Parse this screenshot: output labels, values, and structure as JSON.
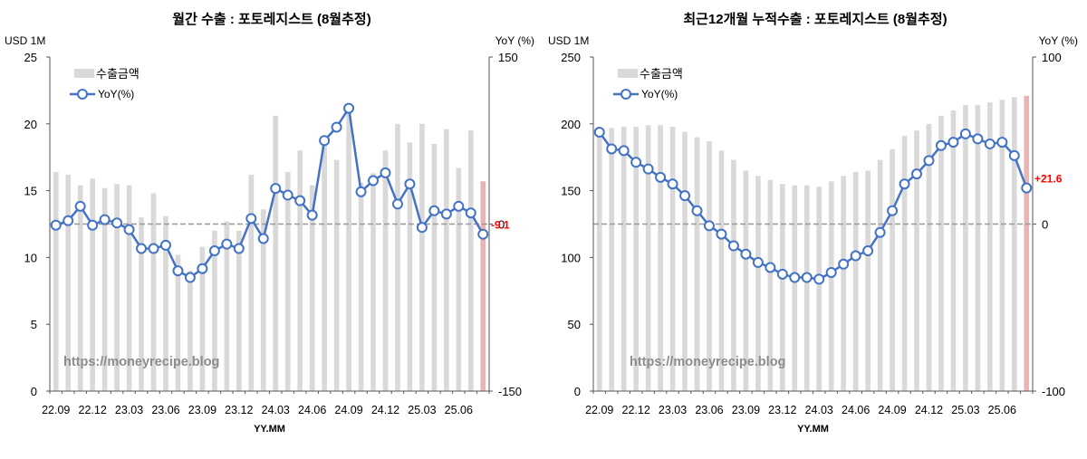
{
  "chart_data": [
    {
      "type": "bar",
      "title": "월간 수출 : 포토레지스트 (8월추정)",
      "y_left_label": "USD 1M",
      "y_right_label": "YoY (%)",
      "xlabel": "YY.MM",
      "ylim_left": [
        0,
        25
      ],
      "ylim_right": [
        -150,
        150
      ],
      "left_ticks": [
        0,
        5,
        10,
        15,
        20,
        25
      ],
      "right_ticks": [
        -150,
        0,
        150
      ],
      "x": [
        "22.09",
        "22.10",
        "22.11",
        "22.12",
        "23.01",
        "23.02",
        "23.03",
        "23.04",
        "23.05",
        "23.06",
        "23.07",
        "23.08",
        "23.09",
        "23.10",
        "23.11",
        "23.12",
        "24.01",
        "24.02",
        "24.03",
        "24.04",
        "24.05",
        "24.06",
        "24.07",
        "24.08",
        "24.09",
        "24.10",
        "24.11",
        "24.12",
        "25.01",
        "25.02",
        "25.03",
        "25.04",
        "25.05",
        "25.06",
        "25.07",
        "25.08"
      ],
      "x_tick_labels": [
        "22.09",
        "22.12",
        "23.03",
        "23.06",
        "23.09",
        "23.12",
        "24.03",
        "24.06",
        "24.09",
        "24.12",
        "25.03",
        "25.06"
      ],
      "series": [
        {
          "name": "수출금액",
          "kind": "bar",
          "axis": "left",
          "values": [
            16.4,
            16.2,
            15.4,
            15.9,
            15.2,
            15.5,
            15.4,
            13.0,
            14.8,
            13.1,
            10.2,
            9.0,
            10.8,
            12.0,
            12.7,
            12.0,
            16.2,
            13.6,
            20.6,
            16.4,
            18.0,
            15.4,
            18.8,
            17.3,
            21.0,
            15.6,
            16.3,
            18.0,
            20.0,
            18.6,
            20.0,
            18.5,
            19.6,
            16.7,
            19.5,
            15.7
          ]
        },
        {
          "name": "YoY(%)",
          "kind": "line",
          "axis": "right",
          "values": [
            -1,
            3,
            16,
            -1,
            4,
            1,
            -5,
            -22,
            -22,
            -19,
            -42,
            -48,
            -40,
            -24,
            -18,
            -22,
            5,
            -13,
            32,
            26,
            21,
            8,
            75,
            87,
            104,
            29,
            39,
            46,
            18,
            36,
            -3,
            12,
            9,
            16,
            10,
            -9.1
          ]
        }
      ],
      "last_label": "-9.1",
      "colors": {
        "bar": "#d9d9d9",
        "bar_highlight": "#e8b4b4",
        "line": "#4472c4",
        "label": "#ff0000"
      },
      "watermark": "https://moneyrecipe.blog",
      "legend_position": "top-left"
    },
    {
      "type": "bar",
      "title": "최근12개월 누적수출 : 포토레지스트 (8월추정)",
      "y_left_label": "USD 1M",
      "y_right_label": "YoY (%)",
      "xlabel": "YY.MM",
      "ylim_left": [
        0,
        250
      ],
      "ylim_right": [
        -100,
        100
      ],
      "left_ticks": [
        0,
        50,
        100,
        150,
        200,
        250
      ],
      "right_ticks": [
        -100,
        0,
        100
      ],
      "x": [
        "22.09",
        "22.10",
        "22.11",
        "22.12",
        "23.01",
        "23.02",
        "23.03",
        "23.04",
        "23.05",
        "23.06",
        "23.07",
        "23.08",
        "23.09",
        "23.10",
        "23.11",
        "23.12",
        "24.01",
        "24.02",
        "24.03",
        "24.04",
        "24.05",
        "24.06",
        "24.07",
        "24.08",
        "24.09",
        "24.10",
        "24.11",
        "24.12",
        "25.01",
        "25.02",
        "25.03",
        "25.04",
        "25.05",
        "25.06",
        "25.07",
        "25.08"
      ],
      "x_tick_labels": [
        "22.09",
        "22.12",
        "23.03",
        "23.06",
        "23.09",
        "23.12",
        "24.03",
        "24.06",
        "24.09",
        "24.12",
        "25.03",
        "25.06"
      ],
      "series": [
        {
          "name": "수출금액",
          "kind": "bar",
          "axis": "left",
          "values": [
            195,
            197,
            198,
            198,
            199,
            199,
            198,
            194,
            190,
            187,
            180,
            173,
            165,
            161,
            158,
            155,
            154,
            154,
            153,
            157,
            161,
            164,
            165,
            173,
            181,
            191,
            195,
            200,
            206,
            210,
            214,
            214,
            216,
            218,
            220,
            221
          ]
        },
        {
          "name": "YoY(%)",
          "kind": "line",
          "axis": "right",
          "values": [
            55,
            45,
            44,
            37,
            33,
            28,
            24,
            17,
            8,
            -1,
            -6,
            -13,
            -18,
            -23,
            -26,
            -30,
            -32,
            -32,
            -33,
            -29,
            -24,
            -19,
            -16,
            -5,
            8,
            24,
            30,
            38,
            47,
            49,
            54,
            51,
            48,
            49,
            41,
            21.6
          ]
        }
      ],
      "last_label": "+21.6",
      "colors": {
        "bar": "#d9d9d9",
        "bar_highlight": "#e8b4b4",
        "line": "#4472c4",
        "label": "#ff0000"
      },
      "watermark": "https://moneyrecipe.blog",
      "legend_position": "top-left"
    }
  ]
}
